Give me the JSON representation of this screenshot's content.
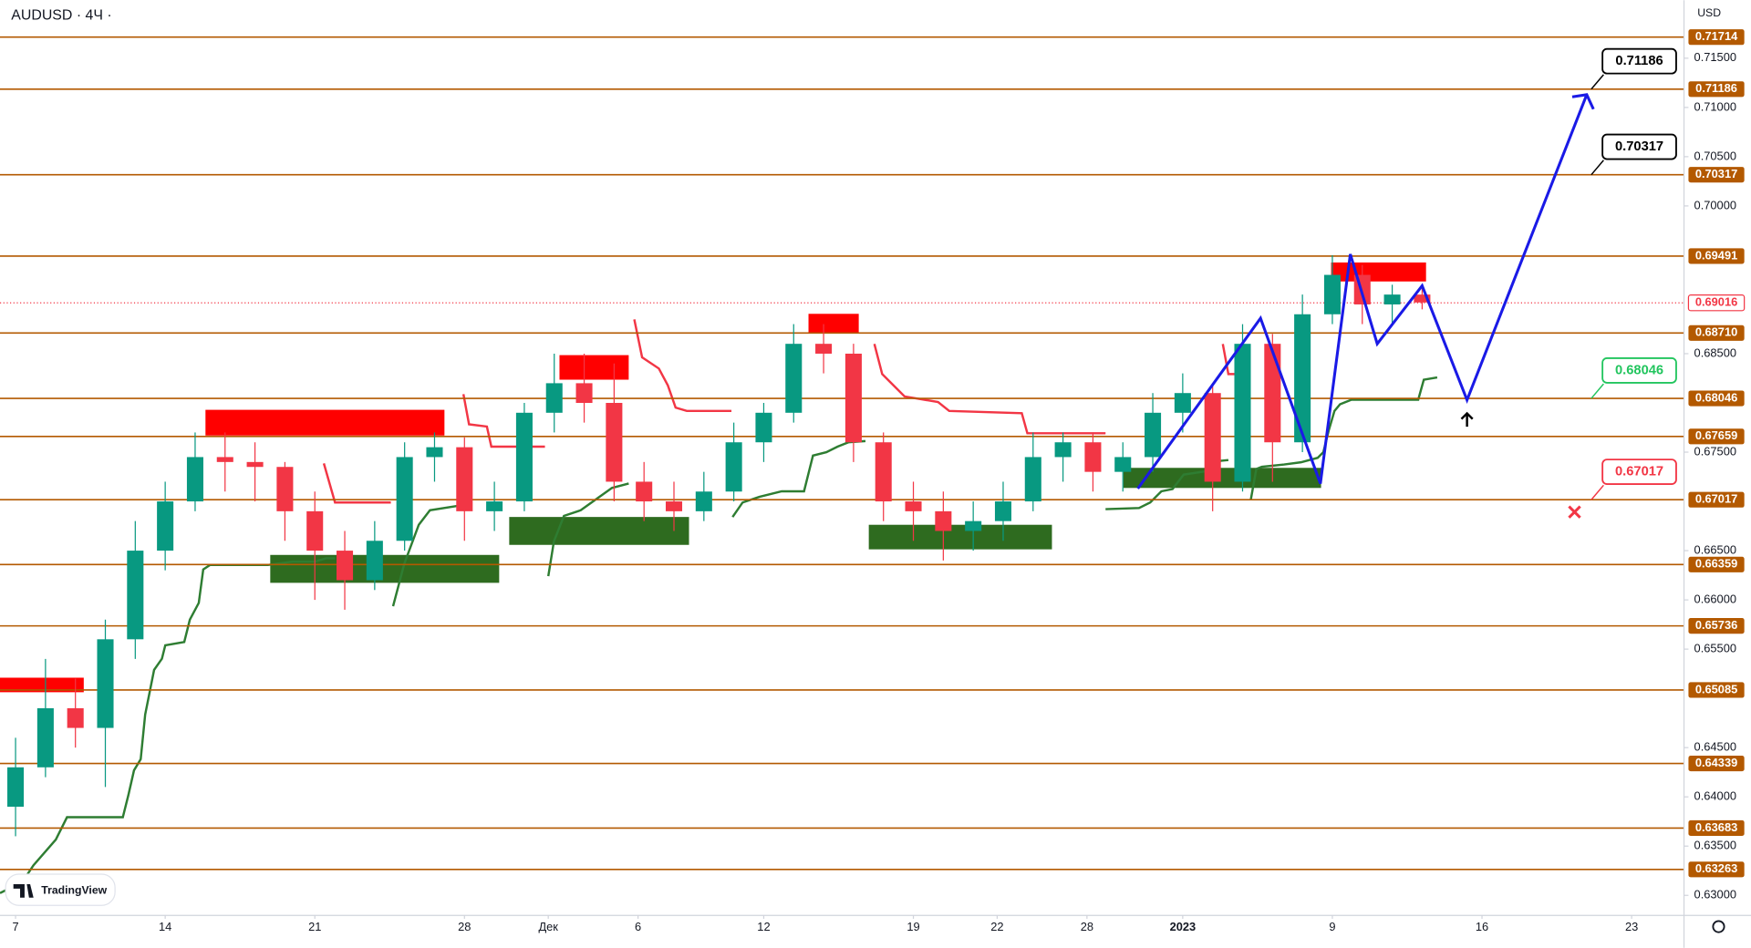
{
  "chart_data": {
    "type": "candlestick",
    "title": "AUDUSD · 4Ч ·",
    "currency": "USD",
    "watermark": "TradingView",
    "up_color": "#089981",
    "down_color": "#f23645",
    "x": [
      0,
      1,
      2,
      3,
      4,
      5,
      6,
      7,
      8,
      9,
      10,
      11,
      12,
      13,
      14,
      15,
      16,
      17,
      18,
      19,
      20,
      21,
      22,
      23,
      24,
      25,
      26,
      27,
      28,
      29,
      30,
      31,
      32,
      33,
      34,
      35,
      36,
      37,
      38,
      39,
      40,
      41,
      42,
      43,
      44,
      45,
      46,
      47
    ],
    "open": [
      0.639,
      0.643,
      0.649,
      0.647,
      0.656,
      0.665,
      0.67,
      0.6745,
      0.674,
      0.6735,
      0.669,
      0.665,
      0.662,
      0.666,
      0.6745,
      0.6755,
      0.669,
      0.67,
      0.679,
      0.682,
      0.68,
      0.672,
      0.67,
      0.669,
      0.671,
      0.676,
      0.679,
      0.686,
      0.685,
      0.676,
      0.67,
      0.669,
      0.667,
      0.668,
      0.67,
      0.6745,
      0.676,
      0.673,
      0.6745,
      0.679,
      0.681,
      0.672,
      0.686,
      0.676,
      0.689,
      0.693,
      0.69,
      0.691
    ],
    "high": [
      0.646,
      0.654,
      0.652,
      0.658,
      0.668,
      0.672,
      0.677,
      0.677,
      0.676,
      0.674,
      0.671,
      0.667,
      0.668,
      0.676,
      0.677,
      0.6765,
      0.672,
      0.68,
      0.685,
      0.685,
      0.684,
      0.674,
      0.672,
      0.673,
      0.678,
      0.68,
      0.688,
      0.688,
      0.686,
      0.677,
      0.672,
      0.671,
      0.67,
      0.672,
      0.677,
      0.677,
      0.677,
      0.676,
      0.681,
      0.683,
      0.682,
      0.688,
      0.687,
      0.691,
      0.695,
      0.694,
      0.692,
      0.692
    ],
    "low": [
      0.636,
      0.642,
      0.645,
      0.641,
      0.654,
      0.663,
      0.669,
      0.671,
      0.67,
      0.666,
      0.66,
      0.659,
      0.661,
      0.665,
      0.672,
      0.666,
      0.667,
      0.669,
      0.677,
      0.678,
      0.67,
      0.668,
      0.667,
      0.668,
      0.67,
      0.674,
      0.678,
      0.683,
      0.674,
      0.668,
      0.666,
      0.664,
      0.665,
      0.666,
      0.669,
      0.672,
      0.671,
      0.671,
      0.673,
      0.677,
      0.669,
      0.671,
      0.672,
      0.675,
      0.688,
      0.688,
      0.688,
      0.6895
    ],
    "close": [
      0.643,
      0.649,
      0.647,
      0.656,
      0.665,
      0.67,
      0.6745,
      0.674,
      0.6735,
      0.669,
      0.665,
      0.662,
      0.666,
      0.6745,
      0.6755,
      0.669,
      0.67,
      0.679,
      0.682,
      0.68,
      0.672,
      0.67,
      0.669,
      0.671,
      0.676,
      0.679,
      0.686,
      0.685,
      0.676,
      0.67,
      0.669,
      0.667,
      0.668,
      0.67,
      0.6745,
      0.676,
      0.673,
      0.6745,
      0.679,
      0.681,
      0.672,
      0.686,
      0.676,
      0.689,
      0.693,
      0.69,
      0.691,
      0.6902
    ],
    "xlim": [
      -0.52,
      55.75
    ],
    "ylim": [
      0.62796,
      0.72089
    ],
    "xticks": [
      {
        "value": 0,
        "label": "7"
      },
      {
        "value": 5,
        "label": "14"
      },
      {
        "value": 10,
        "label": "21"
      },
      {
        "value": 15,
        "label": "28"
      },
      {
        "value": 17.8,
        "label": "Дек"
      },
      {
        "value": 20.8,
        "label": "6"
      },
      {
        "value": 25,
        "label": "12"
      },
      {
        "value": 30,
        "label": "19"
      },
      {
        "value": 32.8,
        "label": "22"
      },
      {
        "value": 35.8,
        "label": "28"
      },
      {
        "value": 39,
        "label": "2023"
      },
      {
        "value": 44,
        "label": "9"
      },
      {
        "value": 49,
        "label": "16"
      },
      {
        "value": 54,
        "label": "23"
      }
    ],
    "yticks": [
      {
        "value": 0.715,
        "label": "0.71500"
      },
      {
        "value": 0.71,
        "label": "0.71000"
      },
      {
        "value": 0.705,
        "label": "0.70500"
      },
      {
        "value": 0.7,
        "label": "0.70000"
      },
      {
        "value": 0.685,
        "label": "0.68500"
      },
      {
        "value": 0.675,
        "label": "0.67500"
      },
      {
        "value": 0.665,
        "label": "0.66500"
      },
      {
        "value": 0.66,
        "label": "0.66000"
      },
      {
        "value": 0.655,
        "label": "0.65500"
      },
      {
        "value": 0.645,
        "label": "0.64500"
      },
      {
        "value": 0.64,
        "label": "0.64000"
      },
      {
        "value": 0.635,
        "label": "0.63500"
      },
      {
        "value": 0.63,
        "label": "0.63000"
      }
    ],
    "level_color": "#b35900",
    "levels": [
      0.71714,
      0.71186,
      0.70317,
      0.69491,
      {
        "value": 0.6871,
        "label": "0.68710"
      },
      0.68046,
      0.67659,
      0.67017,
      0.66359,
      0.65736,
      0.65085,
      0.64339,
      0.63683,
      0.63263
    ],
    "current_price": {
      "value": 0.69016,
      "color": "#f23645"
    },
    "projection": {
      "color": "#1a1ae6",
      "x": [
        37.5,
        41.6,
        43.6,
        44.6,
        45.5,
        47.0,
        48.5,
        52.5
      ],
      "y": [
        0.6713,
        0.6886,
        0.6718,
        0.6951,
        0.686,
        0.6919,
        0.6803,
        0.7113
      ]
    },
    "callouts": [
      {
        "value": 0.71186,
        "color": "#000000"
      },
      {
        "value": 0.70317,
        "color": "#000000"
      },
      {
        "value": 0.68046,
        "color": "#22c55e"
      },
      {
        "value": 0.67017,
        "color": "#f23645"
      }
    ]
  }
}
